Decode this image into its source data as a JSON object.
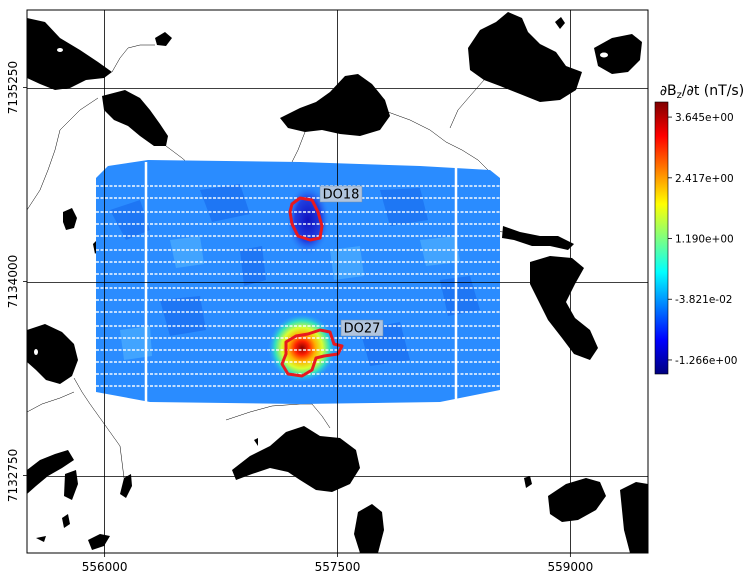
{
  "chart_data": {
    "type": "heatmap",
    "title": "",
    "xlabel": "",
    "ylabel": "",
    "xlim": [
      555500,
      559500
    ],
    "ylim": [
      7132250,
      7135750
    ],
    "x_ticks": [
      556000,
      557500,
      559000
    ],
    "x_tick_labels": [
      "556000",
      "557500",
      "559000"
    ],
    "y_ticks": [
      7132750,
      7134000,
      7135250
    ],
    "y_tick_labels": [
      "7132750",
      "7134000",
      "7135250"
    ],
    "grid": true,
    "colorbar": {
      "label": "∂B_z/∂t (nT/s)",
      "colormap": "jet",
      "vmin": -1.55,
      "vmax": 3.95,
      "ticks": [
        -1.266,
        -0.03821,
        1.19,
        2.417,
        3.645
      ],
      "tick_labels": [
        "-1.266e+00",
        "-3.821e-02",
        "1.190e+00",
        "2.417e+00",
        "3.645e+00"
      ]
    },
    "anomalies": [
      {
        "label": "DO18",
        "x": 557350,
        "y": 7134400
      },
      {
        "label": "DO27",
        "x": 557450,
        "y": 7133600
      }
    ],
    "colors": {
      "lakes": "#000000",
      "outline": "#e8181f",
      "survey_lines": "#ffffff",
      "label_box": "#b0c4de"
    }
  }
}
